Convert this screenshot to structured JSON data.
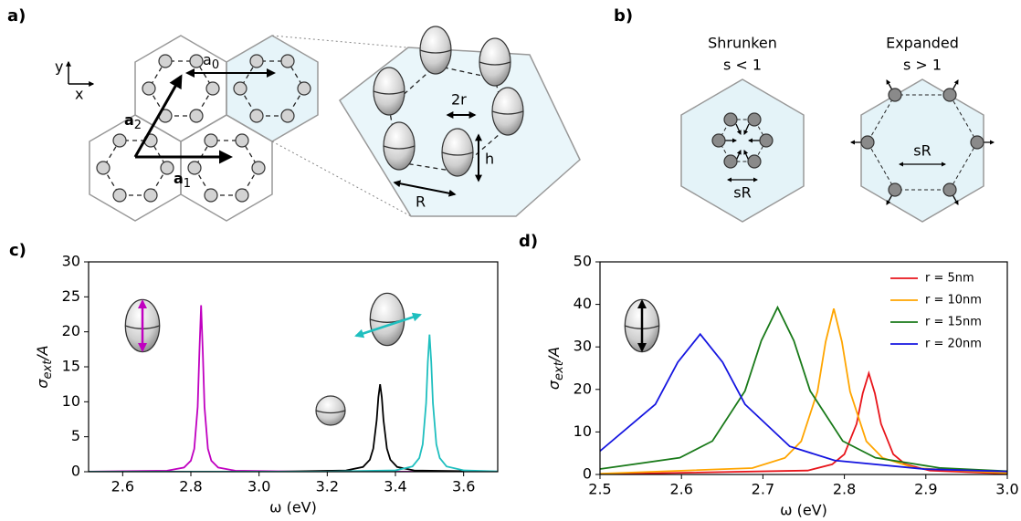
{
  "panel_a": {
    "label": "a)",
    "axis_y": "y",
    "axis_x": "x",
    "a0": {
      "base": "a",
      "sub": "0"
    },
    "a1": {
      "base": "a",
      "sub": "1"
    },
    "a2": {
      "base": "a",
      "sub": "2"
    },
    "two_r": "2r",
    "h": "h",
    "R": "R"
  },
  "panel_b": {
    "label": "b)",
    "shrunken": {
      "title": "Shrunken",
      "condition": "s < 1",
      "spacing": "sR"
    },
    "expanded": {
      "title": "Expanded",
      "condition": "s > 1",
      "spacing": "sR"
    }
  },
  "chart_data": [
    {
      "type": "line",
      "panel_label": "c)",
      "xlabel": "ω (eV)",
      "ylabel": {
        "symbol": "σ",
        "sub": "ext",
        "rest": "/A"
      },
      "xlim": [
        2.5,
        3.7
      ],
      "ylim": [
        0,
        30
      ],
      "xticks": [
        2.6,
        2.8,
        {
          "value": 3,
          "label": "3.0"
        },
        3.2,
        3.4,
        3.6
      ],
      "yticks": [
        0,
        5,
        10,
        15,
        20,
        25,
        30
      ],
      "series": [
        {
          "color": "#c000c0",
          "x": [
            2.5,
            2.73,
            2.78,
            2.8,
            2.81,
            2.82,
            2.825,
            2.83,
            2.835,
            2.84,
            2.85,
            2.86,
            2.88,
            2.93,
            3.13,
            3.7
          ],
          "values": [
            0.01,
            0.15,
            0.6,
            1.58,
            3.28,
            9.29,
            17.1,
            23.8,
            17.1,
            9.29,
            3.28,
            1.58,
            0.6,
            0.15,
            0.02,
            0
          ]
        },
        {
          "color": "#000000",
          "x": [
            2.5,
            3.055,
            3.255,
            3.305,
            3.325,
            3.335,
            3.345,
            3.35,
            3.355,
            3.36,
            3.365,
            3.375,
            3.385,
            3.405,
            3.455,
            3.7
          ],
          "values": [
            0,
            0.02,
            0.18,
            0.68,
            1.72,
            3.31,
            7.38,
            10.65,
            12.5,
            10.65,
            7.38,
            3.31,
            1.72,
            0.68,
            0.18,
            0.01
          ]
        },
        {
          "color": "#1fbfbf",
          "x": [
            2.5,
            3.2,
            3.4,
            3.45,
            3.47,
            3.48,
            3.49,
            3.495,
            3.5,
            3.505,
            3.51,
            3.52,
            3.53,
            3.55,
            3.6,
            3.7
          ],
          "values": [
            0,
            0.02,
            0.19,
            0.75,
            1.96,
            3.92,
            9.8,
            15.7,
            19.6,
            15.7,
            9.8,
            3.92,
            1.96,
            0.75,
            0.19,
            0.05
          ]
        }
      ]
    },
    {
      "type": "line",
      "panel_label": "d)",
      "xlabel": "ω (eV)",
      "ylabel": {
        "symbol": "σ",
        "sub": "ext",
        "rest": "/A"
      },
      "xlim": [
        2.5,
        3
      ],
      "ylim": [
        0,
        50
      ],
      "xticks": [
        2.5,
        2.6,
        2.7,
        2.8,
        2.9,
        {
          "value": 3,
          "label": "3.0"
        }
      ],
      "yticks": [
        0,
        10,
        20,
        30,
        40,
        50
      ],
      "legend": "upper right",
      "series": [
        {
          "name": "r = 5nm",
          "color": "#e8151b",
          "x": [
            2.5,
            2.755,
            2.785,
            2.8,
            2.815,
            2.8225,
            2.83,
            2.8375,
            2.845,
            2.86,
            2.875,
            2.905,
            3.0
          ],
          "values": [
            0.05,
            0.92,
            2.38,
            4.76,
            11.9,
            19.04,
            23.8,
            19.04,
            11.9,
            4.76,
            2.38,
            0.92,
            0.18
          ]
        },
        {
          "name": "r = 10nm",
          "color": "#ffa500",
          "x": [
            2.5,
            2.687,
            2.727,
            2.747,
            2.767,
            2.777,
            2.787,
            2.797,
            2.807,
            2.827,
            2.847,
            2.887,
            3.0
          ],
          "values": [
            0.19,
            1.5,
            3.9,
            7.8,
            19.5,
            31.2,
            39,
            31.2,
            19.5,
            7.8,
            3.9,
            1.5,
            0.34
          ]
        },
        {
          "name": "r = 15nm",
          "color": "#1a7a1a",
          "x": [
            2.5,
            2.598,
            2.638,
            2.678,
            2.698,
            2.718,
            2.738,
            2.758,
            2.798,
            2.838,
            2.918,
            3.0
          ],
          "values": [
            1.28,
            3.93,
            7.86,
            19.65,
            31.44,
            39.3,
            31.44,
            19.65,
            7.86,
            3.93,
            1.51,
            0.78
          ]
        },
        {
          "name": "r = 20nm",
          "color": "#1515e0",
          "x": [
            2.5,
            2.568,
            2.5955,
            2.623,
            2.6505,
            2.678,
            2.733,
            2.788,
            2.898,
            3.0
          ],
          "values": [
            5.5,
            16.5,
            26.4,
            33,
            26.4,
            16.5,
            6.6,
            3.3,
            1.27,
            0.69
          ]
        }
      ]
    }
  ]
}
